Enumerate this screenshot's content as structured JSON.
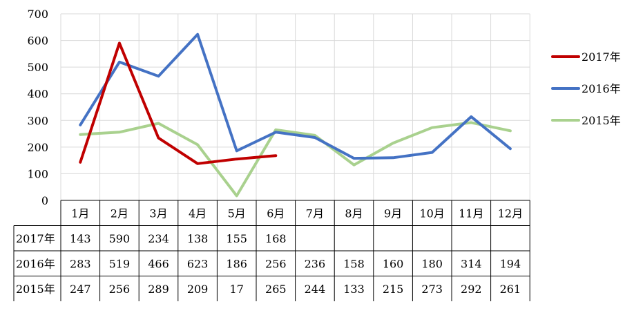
{
  "chart_data": {
    "type": "line",
    "categories": [
      "1月",
      "2月",
      "3月",
      "4月",
      "5月",
      "6月",
      "7月",
      "8月",
      "9月",
      "10月",
      "11月",
      "12月"
    ],
    "ylim": [
      0,
      700
    ],
    "yticks": [
      0,
      100,
      200,
      300,
      400,
      500,
      600,
      700
    ],
    "grid": true,
    "legend_position": "right",
    "series": [
      {
        "name": "2017年",
        "color": "#c00000",
        "values": [
          143,
          590,
          234,
          138,
          155,
          168,
          null,
          null,
          null,
          null,
          null,
          null
        ]
      },
      {
        "name": "2016年",
        "color": "#4472c4",
        "values": [
          283,
          519,
          466,
          623,
          186,
          256,
          236,
          158,
          160,
          180,
          314,
          194
        ]
      },
      {
        "name": "2015年",
        "color": "#a9d18e",
        "values": [
          247,
          256,
          289,
          209,
          17,
          265,
          244,
          133,
          215,
          273,
          292,
          261
        ]
      }
    ],
    "table": {
      "rows": [
        {
          "label": "2017年",
          "values": [
            "143",
            "590",
            "234",
            "138",
            "155",
            "168",
            "",
            "",
            "",
            "",
            "",
            ""
          ]
        },
        {
          "label": "2016年",
          "values": [
            "283",
            "519",
            "466",
            "623",
            "186",
            "256",
            "236",
            "158",
            "160",
            "180",
            "314",
            "194"
          ]
        },
        {
          "label": "2015年",
          "values": [
            "247",
            "256",
            "289",
            "209",
            "17",
            "265",
            "244",
            "133",
            "215",
            "273",
            "292",
            "261"
          ]
        }
      ]
    }
  }
}
